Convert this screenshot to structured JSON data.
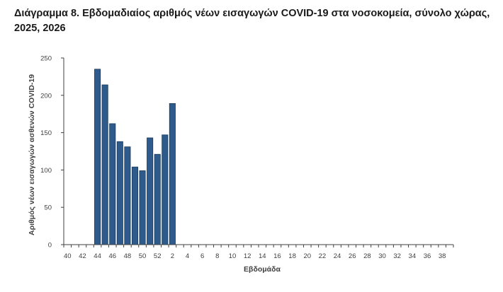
{
  "chart_data": {
    "type": "bar",
    "title": "Διάγραμμα 8. Εβδομαδιαίος αριθμός νέων εισαγωγών COVID-19 στα νοσοκομεία, σύνολο χώρας, 2025, 2026",
    "xlabel": "Εβδομάδα",
    "ylabel": "Αριθμός νέων εισαγωγών ασθενών COVID-19",
    "ylim": [
      0,
      250
    ],
    "yticks": [
      0,
      50,
      100,
      150,
      200,
      250
    ],
    "grid": false,
    "categories": [
      "40",
      "41",
      "42",
      "43",
      "44",
      "45",
      "46",
      "47",
      "48",
      "49",
      "50",
      "51",
      "52",
      "1",
      "2",
      "3",
      "4",
      "5",
      "6",
      "7",
      "8",
      "9",
      "10",
      "11",
      "12",
      "13",
      "14",
      "15",
      "16",
      "17",
      "18",
      "19",
      "20",
      "21",
      "22",
      "23",
      "24",
      "25",
      "26",
      "27",
      "28",
      "29",
      "30",
      "31",
      "32",
      "33",
      "34",
      "35",
      "36",
      "37",
      "38",
      "39"
    ],
    "xtick_labels": [
      "40",
      "42",
      "44",
      "46",
      "48",
      "50",
      "52",
      "2",
      "4",
      "6",
      "8",
      "10",
      "12",
      "14",
      "16",
      "18",
      "20",
      "22",
      "24",
      "26",
      "28",
      "30",
      "32",
      "34",
      "36",
      "38"
    ],
    "values": [
      null,
      null,
      null,
      null,
      235,
      214,
      162,
      138,
      131,
      104,
      99,
      143,
      121,
      147,
      189,
      null,
      null,
      null,
      null,
      null,
      null,
      null,
      null,
      null,
      null,
      null,
      null,
      null,
      null,
      null,
      null,
      null,
      null,
      null,
      null,
      null,
      null,
      null,
      null,
      null,
      null,
      null,
      null,
      null,
      null,
      null,
      null,
      null,
      null,
      null,
      null,
      null
    ],
    "bar_color": "#2e5b8c"
  }
}
